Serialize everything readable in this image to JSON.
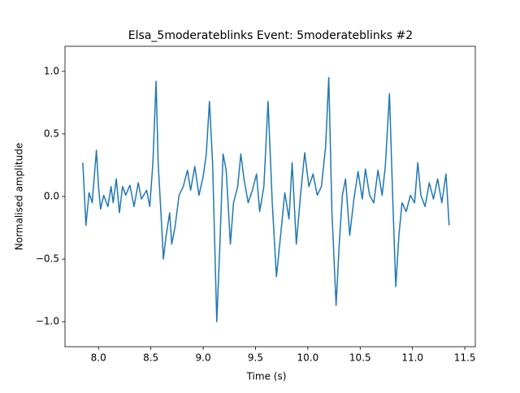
{
  "chart_data": {
    "type": "line",
    "title": "Elsa_5moderateblinks Event: 5moderateblinks #2",
    "x_label": "Time (s)",
    "y_label": "Normalised amplitude",
    "x": [
      7.85,
      7.88,
      7.91,
      7.94,
      7.98,
      8.0,
      8.02,
      8.05,
      8.09,
      8.12,
      8.14,
      8.17,
      8.2,
      8.23,
      8.26,
      8.3,
      8.34,
      8.38,
      8.41,
      8.46,
      8.49,
      8.52,
      8.55,
      8.57,
      8.6,
      8.62,
      8.64,
      8.68,
      8.7,
      8.73,
      8.77,
      8.81,
      8.85,
      8.88,
      8.92,
      8.96,
      9.0,
      9.03,
      9.06,
      9.09,
      9.13,
      9.16,
      9.19,
      9.22,
      9.26,
      9.29,
      9.33,
      9.36,
      9.39,
      9.43,
      9.47,
      9.51,
      9.54,
      9.58,
      9.62,
      9.66,
      9.7,
      9.74,
      9.78,
      9.82,
      9.85,
      9.89,
      9.93,
      9.97,
      10.01,
      10.05,
      10.09,
      10.13,
      10.17,
      10.2,
      10.23,
      10.27,
      10.3,
      10.33,
      10.36,
      10.4,
      10.44,
      10.48,
      10.52,
      10.55,
      10.59,
      10.63,
      10.67,
      10.71,
      10.74,
      10.78,
      10.81,
      10.84,
      10.87,
      10.9,
      10.94,
      10.98,
      11.02,
      11.05,
      11.08,
      11.12,
      11.16,
      11.2,
      11.24,
      11.28,
      11.32,
      11.35
    ],
    "series": [
      {
        "color": "#1f77b4",
        "values": [
          0.27,
          -0.23,
          0.03,
          -0.05,
          0.37,
          0.08,
          -0.1,
          0.01,
          -0.08,
          0.08,
          -0.05,
          0.14,
          -0.13,
          0.08,
          0.01,
          0.09,
          -0.08,
          0.11,
          -0.02,
          0.05,
          -0.08,
          0.27,
          0.92,
          0.27,
          -0.18,
          -0.5,
          -0.35,
          -0.13,
          -0.38,
          -0.25,
          0.01,
          0.08,
          0.21,
          0.05,
          0.24,
          0.01,
          0.16,
          0.34,
          0.76,
          0.27,
          -1.0,
          -0.38,
          0.34,
          0.21,
          -0.38,
          -0.05,
          0.08,
          0.34,
          0.14,
          -0.05,
          0.05,
          0.18,
          -0.12,
          0.08,
          0.76,
          -0.05,
          -0.64,
          -0.31,
          0.03,
          -0.18,
          0.27,
          -0.38,
          0.01,
          0.35,
          0.08,
          0.18,
          0.01,
          0.08,
          0.4,
          0.95,
          -0.12,
          -0.87,
          -0.38,
          0.01,
          0.14,
          -0.31,
          -0.02,
          0.2,
          -0.02,
          0.22,
          0.01,
          -0.05,
          0.21,
          0.01,
          0.24,
          0.82,
          0.01,
          -0.72,
          -0.31,
          -0.05,
          -0.12,
          0.01,
          -0.05,
          0.27,
          0.01,
          -0.08,
          0.11,
          -0.02,
          0.14,
          -0.05,
          0.18,
          -0.23
        ]
      }
    ],
    "xlim": [
      7.68,
      11.6
    ],
    "ylim": [
      -1.2,
      1.2
    ],
    "xticks": [
      {
        "value": 8,
        "label": "8.0"
      },
      8.5,
      {
        "value": 9,
        "label": "9.0"
      },
      9.5,
      {
        "value": 10,
        "label": "10.0"
      },
      10.5,
      {
        "value": 11,
        "label": "11.0"
      },
      11.5
    ],
    "yticks": [
      {
        "value": -1,
        "label": "−1.0"
      },
      {
        "value": -0.5,
        "label": "−0.5"
      },
      {
        "value": 0,
        "label": "0.0"
      },
      0.5,
      {
        "value": 1,
        "label": "1.0"
      }
    ]
  }
}
